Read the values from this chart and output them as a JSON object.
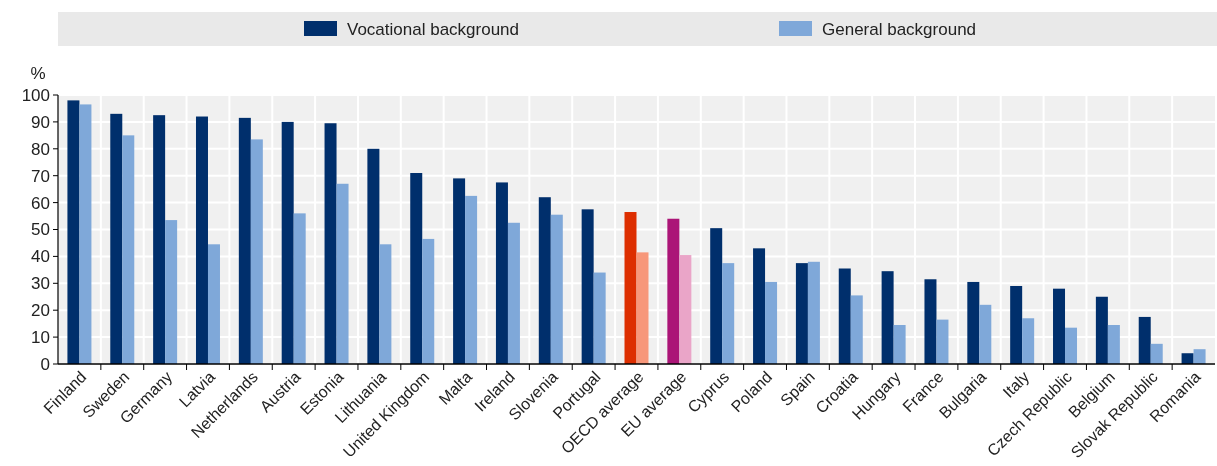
{
  "chart_data": {
    "type": "bar",
    "ylabel": "%",
    "categories": [
      "Finland",
      "Sweden",
      "Germany",
      "Latvia",
      "Netherlands",
      "Austria",
      "Estonia",
      "Lithuania",
      "United Kingdom",
      "Malta",
      "Ireland",
      "Slovenia",
      "Portugal",
      "OECD average",
      "EU average",
      "Cyprus",
      "Poland",
      "Spain",
      "Croatia",
      "Hungary",
      "France",
      "Bulgaria",
      "Italy",
      "Czech Republic",
      "Belgium",
      "Slovak Republic",
      "Romania"
    ],
    "series": [
      {
        "name": "Vocational background",
        "color": "#002f6c",
        "values": [
          98,
          93,
          92.5,
          92,
          91.5,
          90,
          89.5,
          80,
          71,
          69,
          67.5,
          62,
          57.5,
          null,
          null,
          50.5,
          43,
          37.5,
          35.5,
          34.5,
          31.5,
          30.5,
          29,
          28,
          25,
          17.5,
          4
        ]
      },
      {
        "name": "General background",
        "color": "#7fa8d9",
        "values": [
          96.5,
          85,
          53.5,
          44.5,
          83.5,
          56,
          67,
          44.5,
          46.5,
          62.5,
          52.5,
          55.5,
          34,
          null,
          null,
          37.5,
          30.5,
          38,
          25.5,
          14.5,
          16.5,
          22,
          17,
          13.5,
          14.5,
          7.5,
          5.5
        ]
      },
      {
        "color": "#dd2e00",
        "values": [
          null,
          null,
          null,
          null,
          null,
          null,
          null,
          null,
          null,
          null,
          null,
          null,
          null,
          56.5,
          null,
          null,
          null,
          null,
          null,
          null,
          null,
          null,
          null,
          null,
          null,
          null,
          null
        ]
      },
      {
        "color": "#f7977a",
        "values": [
          null,
          null,
          null,
          null,
          null,
          null,
          null,
          null,
          null,
          null,
          null,
          null,
          null,
          41.5,
          null,
          null,
          null,
          null,
          null,
          null,
          null,
          null,
          null,
          null,
          null,
          null,
          null
        ]
      },
      {
        "color": "#ab1577",
        "values": [
          null,
          null,
          null,
          null,
          null,
          null,
          null,
          null,
          null,
          null,
          null,
          null,
          null,
          null,
          54,
          null,
          null,
          null,
          null,
          null,
          null,
          null,
          null,
          null,
          null,
          null,
          null
        ]
      },
      {
        "color": "#eaa5c8",
        "values": [
          null,
          null,
          null,
          null,
          null,
          null,
          null,
          null,
          null,
          null,
          null,
          null,
          null,
          null,
          40.5,
          null,
          null,
          null,
          null,
          null,
          null,
          null,
          null,
          null,
          null,
          null,
          null
        ]
      }
    ],
    "ylim": [
      0,
      100
    ],
    "yticks": [
      0,
      10,
      20,
      30,
      40,
      50,
      60,
      70,
      80,
      90,
      100
    ],
    "grid": true,
    "legend": "top"
  }
}
